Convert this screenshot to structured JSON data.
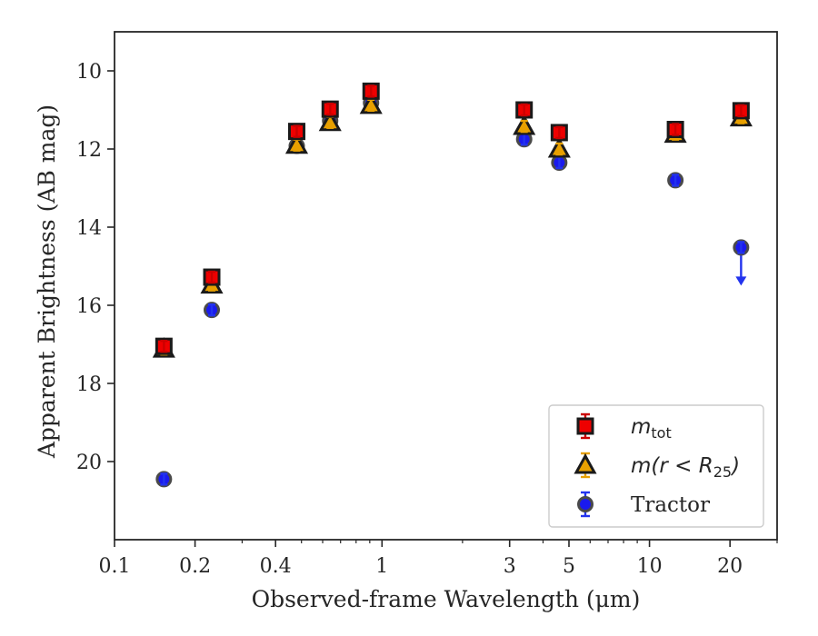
{
  "chart_data": {
    "type": "scatter",
    "xscale": "log",
    "xlabel": "Observed-frame Wavelength (μm)",
    "ylabel": "Apparent Brightness (AB mag)",
    "xlim": [
      0.1,
      30
    ],
    "ylim": [
      22,
      9
    ],
    "xticks": [
      {
        "value": 0.1,
        "label": "0.1"
      },
      {
        "value": 0.2,
        "label": "0.2"
      },
      {
        "value": 0.4,
        "label": "0.4"
      },
      {
        "value": 1,
        "label": "1"
      },
      {
        "value": 3,
        "label": "3"
      },
      {
        "value": 5,
        "label": "5"
      },
      {
        "value": 10,
        "label": "10"
      },
      {
        "value": 20,
        "label": "20"
      }
    ],
    "yticks": [
      {
        "value": 10,
        "label": "10"
      },
      {
        "value": 12,
        "label": "12"
      },
      {
        "value": 14,
        "label": "14"
      },
      {
        "value": 16,
        "label": "16"
      },
      {
        "value": 18,
        "label": "18"
      },
      {
        "value": 20,
        "label": "20"
      }
    ],
    "series": [
      {
        "name": "m_tot",
        "legend_main": "m",
        "legend_sub": "tot",
        "marker": "square",
        "color": "#ee0000",
        "errcolor": "#cc0000",
        "points": [
          {
            "x": 0.153,
            "y": 17.05
          },
          {
            "x": 0.231,
            "y": 15.28
          },
          {
            "x": 0.48,
            "y": 11.55
          },
          {
            "x": 0.64,
            "y": 10.98
          },
          {
            "x": 0.91,
            "y": 10.52
          },
          {
            "x": 3.4,
            "y": 11.0
          },
          {
            "x": 4.6,
            "y": 11.58
          },
          {
            "x": 12.5,
            "y": 11.5
          },
          {
            "x": 22.0,
            "y": 11.02
          }
        ]
      },
      {
        "name": "m(r < R25)",
        "legend_main": "m(r < R",
        "legend_sub": "25",
        "legend_tail": ")",
        "marker": "triangle",
        "color": "#e8a000",
        "errcolor": "#e8a000",
        "points": [
          {
            "x": 0.153,
            "y": 17.12
          },
          {
            "x": 0.231,
            "y": 15.48
          },
          {
            "x": 0.48,
            "y": 11.9
          },
          {
            "x": 0.64,
            "y": 11.32
          },
          {
            "x": 0.91,
            "y": 10.88
          },
          {
            "x": 3.4,
            "y": 11.42
          },
          {
            "x": 4.6,
            "y": 12.0
          },
          {
            "x": 12.5,
            "y": 11.62
          },
          {
            "x": 22.0,
            "y": 11.2
          }
        ]
      },
      {
        "name": "Tractor",
        "legend_main": "Tractor",
        "marker": "circle",
        "color": "#1a1aee",
        "errcolor": "#2233ee",
        "points": [
          {
            "x": 0.153,
            "y": 20.45
          },
          {
            "x": 0.231,
            "y": 16.12
          },
          {
            "x": 0.48,
            "y": 11.92
          },
          {
            "x": 0.64,
            "y": 11.28
          },
          {
            "x": 0.91,
            "y": 10.82
          },
          {
            "x": 3.4,
            "y": 11.75
          },
          {
            "x": 4.6,
            "y": 12.35
          },
          {
            "x": 12.5,
            "y": 12.8
          },
          {
            "x": 22.0,
            "y": 14.52,
            "upper_limit": true
          }
        ]
      }
    ],
    "legend": {
      "position": "lower right"
    }
  }
}
